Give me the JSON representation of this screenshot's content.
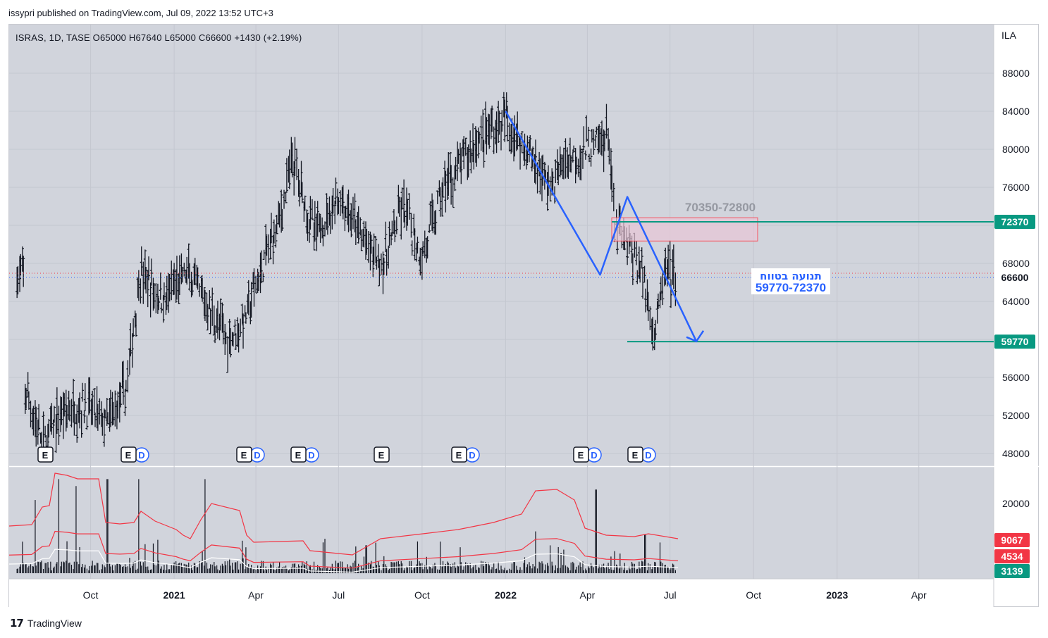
{
  "header": {
    "published": "issypri published on TradingView.com, Jul 09, 2022 13:52 UTC+3"
  },
  "legend": {
    "ohlc": "ISRAS, 1D, TASE  O65000  H67640  L65000  C66600  +1430 (+2.19%)"
  },
  "price_scale": {
    "currency": "ILA",
    "ticks": [
      "88000",
      "84000",
      "80000",
      "76000",
      "72000",
      "68000",
      "64000",
      "60000",
      "56000",
      "52000",
      "48000"
    ],
    "badges": [
      {
        "label": "72370",
        "value": 72370,
        "color": "#089981"
      },
      {
        "label": "66600",
        "value": 66600,
        "color": "#ffffff"
      },
      {
        "label": "59770",
        "value": 59770,
        "color": "#089981"
      }
    ]
  },
  "volume_scale": {
    "ticks": [
      "20000"
    ],
    "badges": [
      {
        "label": "9067",
        "color": "#f23645"
      },
      {
        "label": "4534",
        "color": "#f23645"
      },
      {
        "label": "3139",
        "color": "#089981"
      }
    ]
  },
  "time_axis": {
    "labels": [
      "Oct",
      "2021",
      "Apr",
      "Jul",
      "Oct",
      "2022",
      "Apr",
      "Jul",
      "Oct",
      "2023",
      "Apr"
    ],
    "bold": [
      "2021",
      "2022",
      "2023"
    ]
  },
  "annotations": {
    "zone_label": "70350-72800",
    "range_title": "תנועה בטווח",
    "range_value": "59770-72370"
  },
  "earnings_markers": [
    "E",
    "E",
    "E",
    "E",
    "E",
    "E",
    "E",
    "E"
  ],
  "dividend_markers": [
    "D",
    "D",
    "D",
    "D",
    "D",
    "D"
  ],
  "footer": {
    "brand": "TradingView",
    "logo": "17"
  },
  "colors": {
    "pane_bg": "#d1d4dc",
    "bar": "#131722",
    "pattern_line": "#2962ff",
    "support_line": "#089981",
    "zone_fill": "#e8c6d6",
    "zone_border": "#f7525f",
    "volume_ma": "#f23645",
    "volume_ma_light": "#ffffff"
  },
  "chart_data": {
    "type": "ohlc",
    "symbol": "ISRAS",
    "interval": "1D",
    "exchange": "TASE",
    "ylim": [
      46000,
      90000
    ],
    "last": {
      "open": 65000,
      "high": 67640,
      "low": 65000,
      "close": 66600,
      "change": 1430,
      "change_pct": 2.19
    },
    "price_path": [
      {
        "date": "2020-07-20",
        "price": 55000
      },
      {
        "date": "2020-08-10",
        "price": 49000
      },
      {
        "date": "2020-09-01",
        "price": 52500
      },
      {
        "date": "2020-09-28",
        "price": 53000
      },
      {
        "date": "2020-10-20",
        "price": 51000
      },
      {
        "date": "2020-11-10",
        "price": 55000
      },
      {
        "date": "2020-11-25",
        "price": 67000
      },
      {
        "date": "2020-12-20",
        "price": 64000
      },
      {
        "date": "2021-01-15",
        "price": 67000
      },
      {
        "date": "2021-02-10",
        "price": 63000
      },
      {
        "date": "2021-03-01",
        "price": 60000
      },
      {
        "date": "2021-03-20",
        "price": 62000
      },
      {
        "date": "2021-04-10",
        "price": 68000
      },
      {
        "date": "2021-05-01",
        "price": 74000
      },
      {
        "date": "2021-05-12",
        "price": 79000
      },
      {
        "date": "2021-06-05",
        "price": 71000
      },
      {
        "date": "2021-07-01",
        "price": 75000
      },
      {
        "date": "2021-08-01",
        "price": 70000
      },
      {
        "date": "2021-08-20",
        "price": 68000
      },
      {
        "date": "2021-09-10",
        "price": 74000
      },
      {
        "date": "2021-10-01",
        "price": 68500
      },
      {
        "date": "2021-10-25",
        "price": 76000
      },
      {
        "date": "2021-11-10",
        "price": 78000
      },
      {
        "date": "2021-12-01",
        "price": 81000
      },
      {
        "date": "2022-01-01",
        "price": 83000
      },
      {
        "date": "2022-01-25",
        "price": 80000
      },
      {
        "date": "2022-02-20",
        "price": 76000
      },
      {
        "date": "2022-03-10",
        "price": 79000
      },
      {
        "date": "2022-04-01",
        "price": 80000
      },
      {
        "date": "2022-04-25",
        "price": 81500
      },
      {
        "date": "2022-05-01",
        "price": 72000
      },
      {
        "date": "2022-05-15",
        "price": 70000
      },
      {
        "date": "2022-06-01",
        "price": 67000
      },
      {
        "date": "2022-06-15",
        "price": 60500
      },
      {
        "date": "2022-06-25",
        "price": 67000
      },
      {
        "date": "2022-07-08",
        "price": 66600
      }
    ],
    "pattern_line": [
      {
        "date": "2022-01-01",
        "price": 84000
      },
      {
        "date": "2022-04-15",
        "price": 66800
      },
      {
        "date": "2022-05-15",
        "price": 75000
      },
      {
        "date": "2022-07-30",
        "price": 59800
      }
    ],
    "horizontal_levels": [
      72370,
      59770
    ],
    "zone": {
      "low": 70350,
      "high": 72800
    },
    "volume": {
      "ylim": [
        0,
        26000
      ],
      "ma_upper": 9067,
      "ma_lower": 4534,
      "last_volume": 3139
    }
  }
}
